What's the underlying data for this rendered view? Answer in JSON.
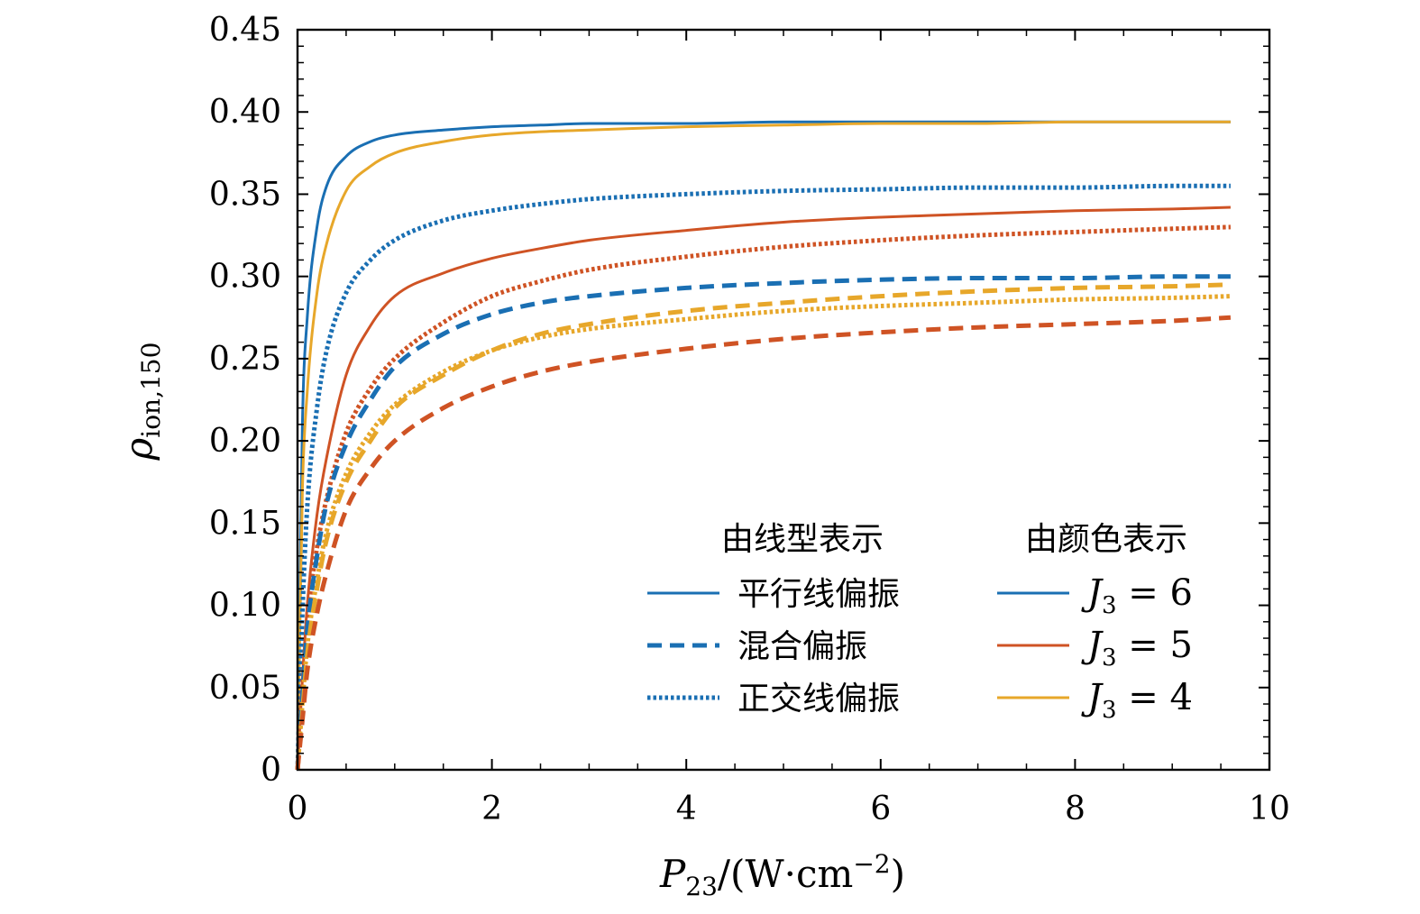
{
  "chart_data": {
    "type": "line",
    "xlabel": "P23/(W·cm−2)",
    "xlabel_parts": {
      "var": "P",
      "sub": "23",
      "unit_open": "/(W·cm",
      "sup": "−2",
      "unit_close": ")"
    },
    "ylabel": "ρion,150",
    "ylabel_parts": {
      "var": "ρ",
      "sub": "ion,150"
    },
    "xlim": [
      0,
      10
    ],
    "ylim": [
      0,
      0.45
    ],
    "x_ticks": [
      0,
      2,
      4,
      6,
      8,
      10
    ],
    "x_tick_labels": [
      "0",
      "2",
      "4",
      "6",
      "8",
      "10"
    ],
    "y_ticks": [
      0,
      0.05,
      0.1,
      0.15,
      0.2,
      0.25,
      0.3,
      0.35,
      0.4,
      0.45
    ],
    "y_tick_labels": [
      "0",
      "0.05",
      "0.10",
      "0.15",
      "0.20",
      "0.25",
      "0.30",
      "0.35",
      "0.40",
      "0.45"
    ],
    "x_sample": [
      0,
      0.05,
      0.1,
      0.2,
      0.3,
      0.5,
      0.75,
      1,
      1.5,
      2,
      2.5,
      3,
      4,
      5,
      6,
      7,
      8,
      9,
      9.6
    ],
    "series": [
      {
        "name": "平行线偏振, J3=6",
        "color": "#1a6fb3",
        "style": "solid",
        "values": [
          0,
          0.21,
          0.275,
          0.33,
          0.355,
          0.373,
          0.382,
          0.386,
          0.389,
          0.391,
          0.392,
          0.393,
          0.393,
          0.394,
          0.394,
          0.394,
          0.394,
          0.394,
          0.394
        ]
      },
      {
        "name": "平行线偏振, J3=4",
        "color": "#e7a72a",
        "style": "solid",
        "values": [
          0,
          0.17,
          0.23,
          0.29,
          0.32,
          0.352,
          0.367,
          0.375,
          0.382,
          0.386,
          0.388,
          0.389,
          0.391,
          0.392,
          0.393,
          0.393,
          0.394,
          0.394,
          0.394
        ]
      },
      {
        "name": "平行线偏振, J3=5",
        "color": "#cf5324",
        "style": "solid",
        "values": [
          0,
          0.055,
          0.1,
          0.155,
          0.19,
          0.24,
          0.27,
          0.288,
          0.302,
          0.311,
          0.317,
          0.322,
          0.328,
          0.333,
          0.336,
          0.338,
          0.34,
          0.341,
          0.342
        ]
      },
      {
        "name": "正交线偏振, J3=6",
        "color": "#1a6fb3",
        "style": "dotted",
        "values": [
          0,
          0.095,
          0.16,
          0.22,
          0.255,
          0.29,
          0.31,
          0.322,
          0.334,
          0.34,
          0.344,
          0.347,
          0.35,
          0.352,
          0.353,
          0.354,
          0.354,
          0.355,
          0.355
        ]
      },
      {
        "name": "正交线偏振, J3=5",
        "color": "#cf5324",
        "style": "dotted",
        "values": [
          0,
          0.05,
          0.09,
          0.135,
          0.165,
          0.205,
          0.232,
          0.25,
          0.272,
          0.288,
          0.297,
          0.304,
          0.312,
          0.318,
          0.322,
          0.325,
          0.327,
          0.329,
          0.33
        ]
      },
      {
        "name": "正交线偏振, J3=4",
        "color": "#e7a72a",
        "style": "dotted",
        "values": [
          0,
          0.04,
          0.075,
          0.115,
          0.145,
          0.18,
          0.205,
          0.222,
          0.242,
          0.255,
          0.263,
          0.268,
          0.274,
          0.279,
          0.282,
          0.284,
          0.286,
          0.287,
          0.288
        ]
      },
      {
        "name": "混合偏振, J3=6",
        "color": "#1a6fb3",
        "style": "dashed",
        "values": [
          0,
          0.045,
          0.085,
          0.13,
          0.162,
          0.198,
          0.225,
          0.245,
          0.265,
          0.277,
          0.284,
          0.288,
          0.293,
          0.296,
          0.298,
          0.299,
          0.299,
          0.3,
          0.3
        ]
      },
      {
        "name": "混合偏振, J3=4",
        "color": "#e7a72a",
        "style": "dashed",
        "values": [
          0,
          0.035,
          0.07,
          0.11,
          0.14,
          0.175,
          0.2,
          0.22,
          0.24,
          0.255,
          0.265,
          0.271,
          0.279,
          0.284,
          0.288,
          0.291,
          0.293,
          0.294,
          0.295
        ]
      },
      {
        "name": "混合偏振, J3=5",
        "color": "#cf5324",
        "style": "dashed",
        "values": [
          0,
          0.03,
          0.06,
          0.095,
          0.12,
          0.158,
          0.183,
          0.2,
          0.22,
          0.233,
          0.242,
          0.248,
          0.256,
          0.262,
          0.266,
          0.269,
          0.271,
          0.273,
          0.275
        ]
      }
    ],
    "legend": {
      "position": "lower-right",
      "linestyle_header": "由线型表示",
      "color_header": "由颜色表示",
      "linestyle_entries": [
        {
          "label": "平行线偏振",
          "style": "solid",
          "color": "#1a6fb3"
        },
        {
          "label": "混合偏振",
          "style": "dashed",
          "color": "#1a6fb3"
        },
        {
          "label": "正交线偏振",
          "style": "dotted",
          "color": "#1a6fb3"
        }
      ],
      "color_entries": [
        {
          "var": "J",
          "sub": "3",
          "rest": " = 6",
          "color": "#1a6fb3"
        },
        {
          "var": "J",
          "sub": "3",
          "rest": " = 5",
          "color": "#cf5324"
        },
        {
          "var": "J",
          "sub": "3",
          "rest": " = 4",
          "color": "#e7a72a"
        }
      ]
    }
  }
}
